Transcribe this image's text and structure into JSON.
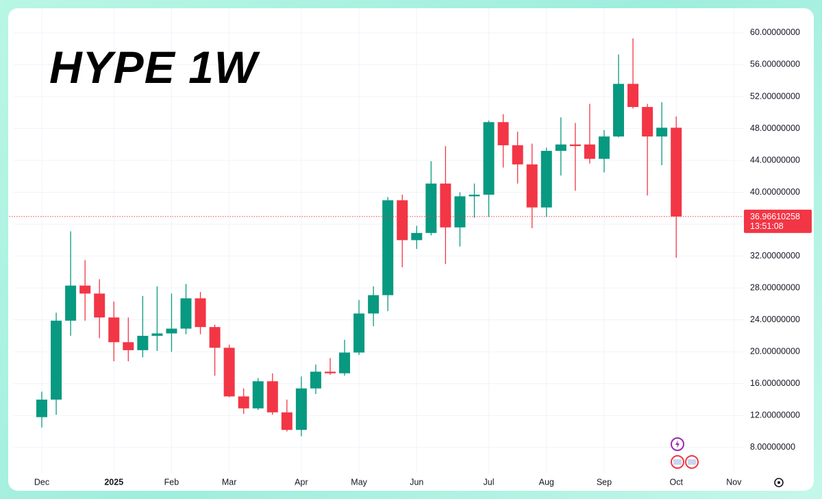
{
  "chart_data": {
    "type": "candlestick",
    "title": "HYPE 1W",
    "categories": [
      "Dec",
      null,
      null,
      null,
      null,
      "2025",
      null,
      null,
      null,
      "Feb",
      null,
      null,
      null,
      "Mar",
      null,
      null,
      null,
      null,
      "Apr",
      null,
      null,
      null,
      "May",
      null,
      null,
      null,
      "Jun",
      null,
      null,
      null,
      null,
      "Jul",
      null,
      null,
      null,
      "Aug",
      null,
      null,
      null,
      "Sep",
      null,
      null,
      null,
      null,
      "Oct",
      null,
      null,
      null,
      "Nov"
    ],
    "series": [
      {
        "up_color": "#089981",
        "down_color": "#f23645",
        "open": [
          11.8,
          14.0,
          23.9,
          28.3,
          27.3,
          24.3,
          21.2,
          20.2,
          22.0,
          22.3,
          22.9,
          26.7,
          23.1,
          20.5,
          14.4,
          12.9,
          16.3,
          12.4,
          10.2,
          15.4,
          17.5,
          17.3,
          19.9,
          24.8,
          27.1,
          39.0,
          34.0,
          34.9,
          41.1,
          35.6,
          39.5,
          39.7,
          48.8,
          45.9,
          43.5,
          38.1,
          45.2,
          46.0,
          46.0,
          44.2,
          47.0,
          53.6,
          50.7,
          47.0,
          48.1,
          null,
          null,
          null,
          null
        ],
        "high": [
          15.0,
          24.9,
          35.1,
          31.5,
          29.1,
          26.3,
          24.3,
          27.0,
          28.2,
          27.3,
          28.5,
          27.5,
          23.4,
          20.9,
          15.4,
          16.7,
          17.3,
          14.0,
          16.9,
          18.4,
          19.2,
          21.5,
          26.5,
          28.2,
          39.4,
          39.7,
          35.8,
          43.9,
          45.8,
          40.0,
          41.1,
          49.0,
          49.8,
          47.6,
          46.1,
          45.6,
          49.4,
          48.7,
          51.1,
          47.8,
          57.3,
          59.3,
          51.1,
          51.3,
          49.5,
          null,
          null,
          null,
          null
        ],
        "low": [
          10.5,
          12.1,
          22.0,
          23.9,
          21.7,
          18.8,
          18.8,
          19.3,
          20.1,
          20.0,
          22.2,
          22.2,
          17.0,
          14.3,
          12.2,
          12.7,
          12.1,
          10.0,
          9.4,
          14.7,
          17.1,
          17.0,
          19.6,
          23.2,
          25.1,
          30.6,
          32.9,
          34.6,
          31.0,
          33.2,
          36.8,
          36.9,
          43.1,
          41.1,
          35.5,
          36.9,
          42.1,
          40.2,
          43.6,
          42.5,
          46.9,
          50.5,
          39.6,
          43.4,
          31.8,
          null,
          null,
          null,
          null
        ],
        "close": [
          14.0,
          23.9,
          28.3,
          27.3,
          24.3,
          21.2,
          20.2,
          22.0,
          22.3,
          22.9,
          26.7,
          23.1,
          20.5,
          14.4,
          12.9,
          16.3,
          12.4,
          10.2,
          15.4,
          17.5,
          17.3,
          19.9,
          24.8,
          27.1,
          39.0,
          34.0,
          34.9,
          41.1,
          35.6,
          39.5,
          39.7,
          48.8,
          45.9,
          43.5,
          38.1,
          45.2,
          46.0,
          45.8,
          44.2,
          47.0,
          53.6,
          50.7,
          47.0,
          48.1,
          36.96610258,
          null,
          null,
          null,
          null
        ]
      }
    ],
    "last_price": 36.96610258,
    "countdown": "13:51:08",
    "ylim": [
      4.8,
      62.4
    ],
    "yticks": [
      {
        "value": 8,
        "label": "8.00000000"
      },
      {
        "value": 12,
        "label": "12.00000000"
      },
      {
        "value": 16,
        "label": "16.00000000"
      },
      {
        "value": 20,
        "label": "20.00000000"
      },
      {
        "value": 24,
        "label": "24.00000000"
      },
      {
        "value": 28,
        "label": "28.00000000"
      },
      {
        "value": 32,
        "label": "32.00000000"
      },
      {
        "value": 36,
        "label": "36.00000000"
      },
      {
        "value": 40,
        "label": "40.00000000"
      },
      {
        "value": 44,
        "label": "44.00000000"
      },
      {
        "value": 48,
        "label": "48.00000000"
      },
      {
        "value": 52,
        "label": "52.00000000"
      },
      {
        "value": 56,
        "label": "56.00000000"
      },
      {
        "value": 60,
        "label": "60.00000000"
      }
    ],
    "grid": true
  }
}
